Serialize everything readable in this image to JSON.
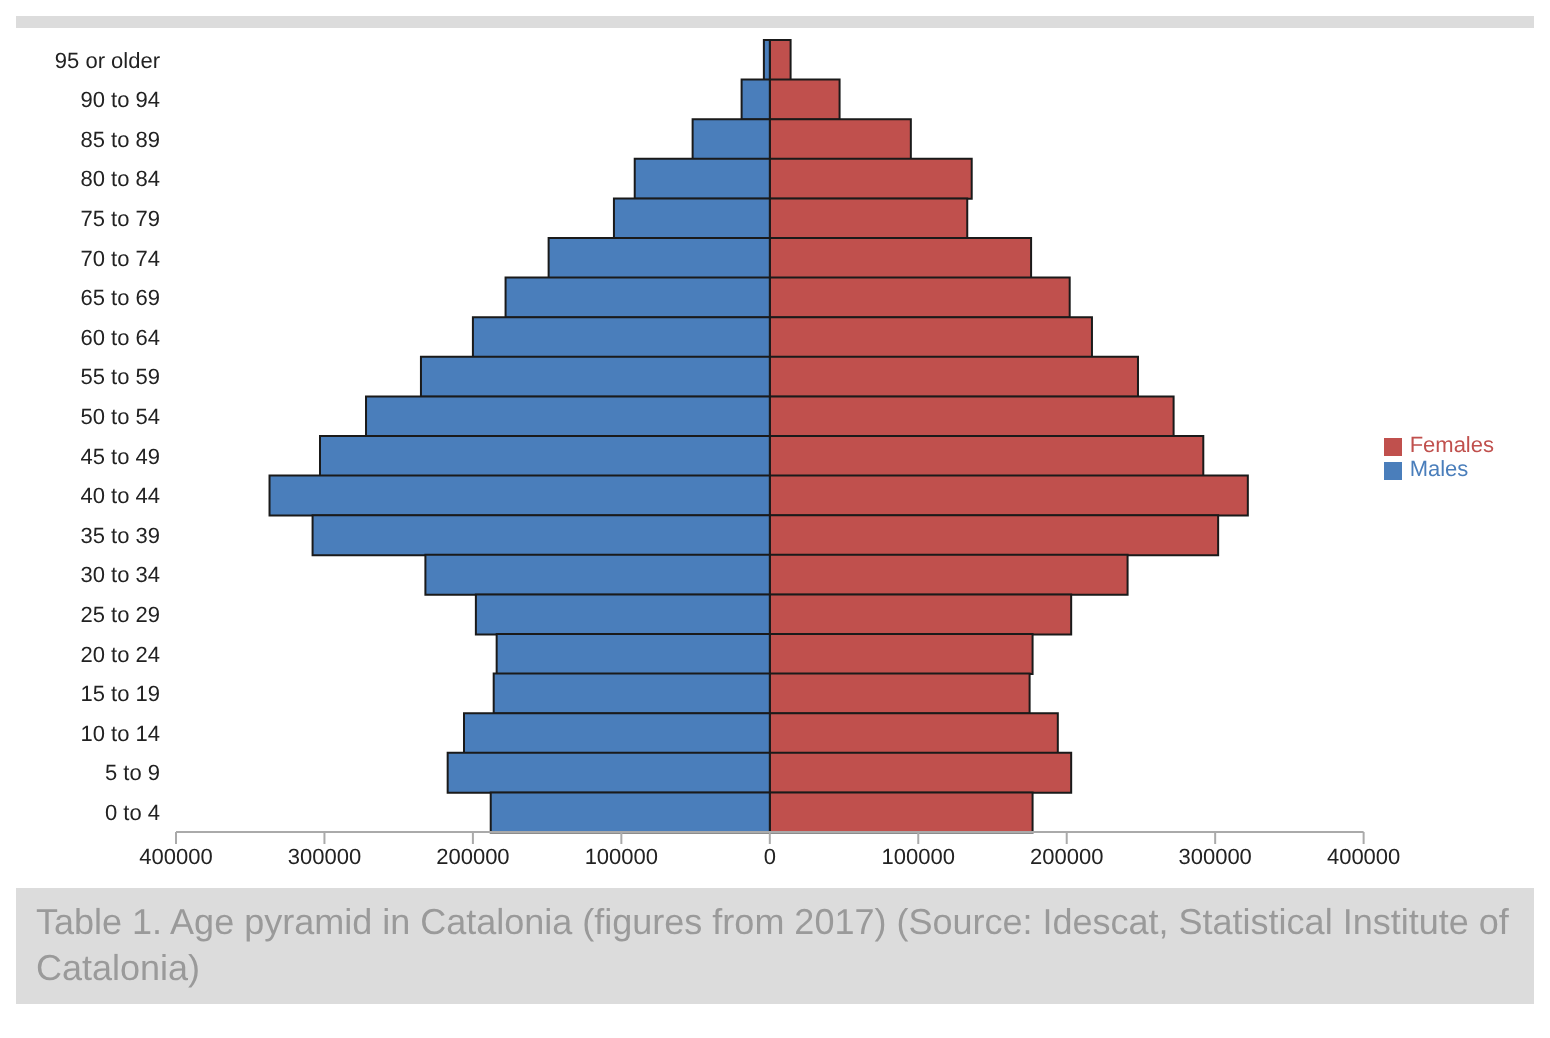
{
  "chart_data": {
    "type": "bar",
    "orientation": "horizontal",
    "stacked": true,
    "categories": [
      "95 or older",
      "90 to 94",
      "85 to 89",
      "80 to 84",
      "75 to 79",
      "70 to 74",
      "65 to 69",
      "60 to 64",
      "55 to 59",
      "50 to 54",
      "45 to 49",
      "40 to 44",
      "35 to 39",
      "30 to 34",
      "25 to 29",
      "20 to 24",
      "15 to 19",
      "10 to 14",
      "5 to 9",
      "0 to 4"
    ],
    "series": [
      {
        "name": "Females",
        "color": "#c0504d",
        "values": [
          14000,
          47000,
          95000,
          136000,
          133000,
          176000,
          202000,
          217000,
          248000,
          272000,
          292000,
          322000,
          302000,
          241000,
          203000,
          177000,
          175000,
          194000,
          203000,
          177000
        ]
      },
      {
        "name": "Males",
        "color": "#4a7ebb",
        "values": [
          -4000,
          -19000,
          -52000,
          -91000,
          -105000,
          -149000,
          -178000,
          -200000,
          -235000,
          -272000,
          -303000,
          -337000,
          -308000,
          -232000,
          -198000,
          -184000,
          -186000,
          -206000,
          -217000,
          -188000
        ]
      }
    ],
    "xlim": [
      -400000,
      400000
    ],
    "xticks": [
      {
        "value": -400000,
        "label": "400000"
      },
      {
        "value": -300000,
        "label": "300000"
      },
      {
        "value": -200000,
        "label": "200000"
      },
      {
        "value": -100000,
        "label": "100000"
      },
      0,
      100000,
      200000,
      300000,
      400000
    ],
    "legend": "right",
    "grid": false,
    "annotations": [
      "Table 1. Age pyramid in Catalonia (figures from 2017) (Source: Idescat, Statistical Institute of Catalonia)"
    ]
  }
}
